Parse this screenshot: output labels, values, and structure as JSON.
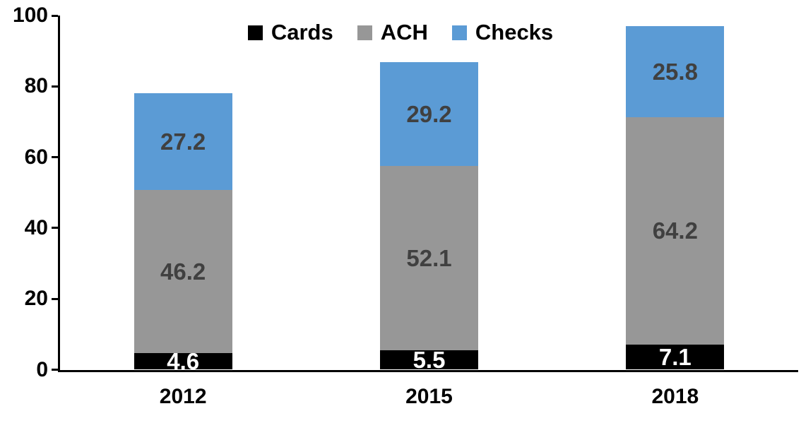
{
  "chart_data": {
    "type": "bar",
    "variant": "stacked-column",
    "title": "",
    "xlabel": "",
    "ylabel": "",
    "categories": [
      "2012",
      "2015",
      "2018"
    ],
    "series": [
      {
        "name": "Cards",
        "values": [
          4.6,
          5.5,
          7.1
        ],
        "color": "#000000",
        "label_color": "#FFFFFF"
      },
      {
        "name": "ACH",
        "values": [
          46.2,
          52.1,
          64.2
        ],
        "color": "#979797",
        "label_color": "#404040"
      },
      {
        "name": "Checks",
        "values": [
          27.2,
          29.2,
          25.8
        ],
        "color": "#5B9BD5",
        "label_color": "#404040"
      }
    ],
    "y_axis": {
      "min": 0,
      "max": 100,
      "tick_interval": 20,
      "ticks": [
        0,
        20,
        40,
        60,
        80,
        100
      ]
    },
    "legend": {
      "position": "top-center"
    },
    "grid": false,
    "data_labels": true,
    "axis_color": "#000000",
    "background": "#FFFFFF"
  }
}
